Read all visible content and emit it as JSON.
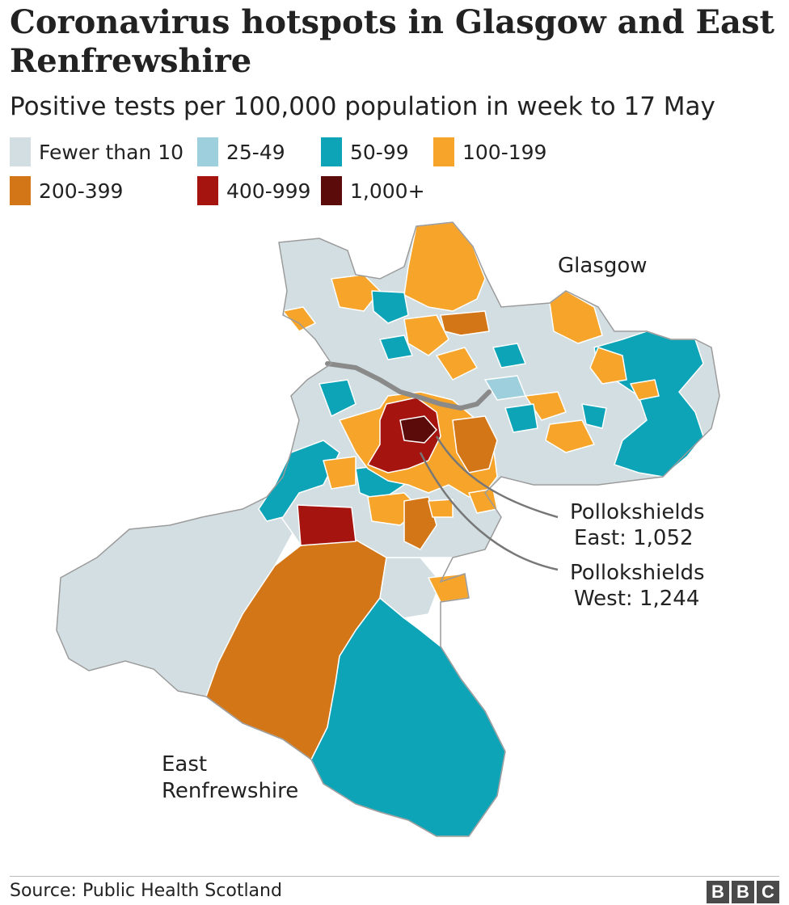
{
  "title": "Coronavirus hotspots in Glasgow and East Renfrewshire",
  "subtitle": "Positive tests per 100,000 population in week to 17 May",
  "legend": [
    {
      "label": "Fewer than 10",
      "color": "#d2dee2"
    },
    {
      "label": "25-49",
      "color": "#9ecfdc"
    },
    {
      "label": "50-99",
      "color": "#0ea4b8"
    },
    {
      "label": "100-199",
      "color": "#f7a42a"
    },
    {
      "label": "200-399",
      "color": "#d37618"
    },
    {
      "label": "400-999",
      "color": "#a5140f"
    },
    {
      "label": "1,000+",
      "color": "#5c0b0b"
    }
  ],
  "map": {
    "region_labels": {
      "glasgow": "Glasgow",
      "east_renfrewshire_line1": "East",
      "east_renfrewshire_line2": "Renfrewshire"
    },
    "callouts": {
      "east_line1": "Pollokshields",
      "east_line2": "East: 1,052",
      "west_line1": "Pollokshields",
      "west_line2": "West: 1,244"
    },
    "colors": {
      "river": "#8a8a8a",
      "border": "#9a9a9a",
      "callout_line": "#777777"
    }
  },
  "source": "Source: Public Health Scotland",
  "logo": [
    "B",
    "B",
    "C"
  ]
}
